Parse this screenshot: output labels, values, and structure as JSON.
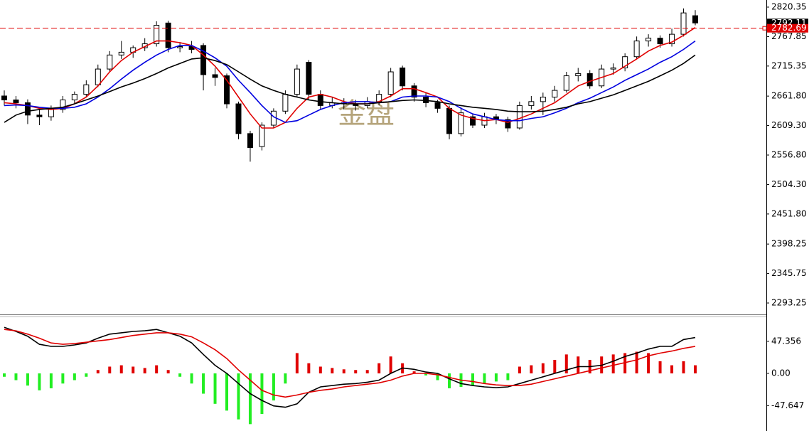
{
  "chart_data": [
    {
      "type": "candlestick",
      "watermark": "金盘",
      "open": [
        2662,
        2655,
        2650,
        2628,
        2625,
        2638,
        2655,
        2665,
        2682,
        2710,
        2735,
        2740,
        2748,
        2755,
        2792,
        2748,
        2750,
        2752,
        2700,
        2698,
        2648,
        2595,
        2572,
        2610,
        2635,
        2665,
        2722,
        2665,
        2645,
        2650,
        2648,
        2645,
        2652,
        2665,
        2712,
        2680,
        2660,
        2650,
        2640,
        2595,
        2625,
        2610,
        2625,
        2620,
        2605,
        2645,
        2652,
        2660,
        2672,
        2698,
        2702,
        2680,
        2710,
        2712,
        2732,
        2760,
        2765,
        2755,
        2772,
        2805
      ],
      "high": [
        2672,
        2662,
        2656,
        2640,
        2645,
        2662,
        2670,
        2690,
        2718,
        2742,
        2760,
        2752,
        2765,
        2795,
        2796,
        2758,
        2760,
        2756,
        2712,
        2702,
        2652,
        2600,
        2615,
        2640,
        2672,
        2718,
        2726,
        2672,
        2660,
        2658,
        2655,
        2660,
        2672,
        2712,
        2716,
        2685,
        2668,
        2655,
        2645,
        2642,
        2630,
        2632,
        2630,
        2625,
        2652,
        2662,
        2668,
        2680,
        2705,
        2712,
        2708,
        2718,
        2720,
        2738,
        2768,
        2772,
        2770,
        2782,
        2818,
        2815
      ],
      "low": [
        2645,
        2640,
        2612,
        2610,
        2618,
        2632,
        2648,
        2660,
        2678,
        2705,
        2728,
        2730,
        2742,
        2750,
        2740,
        2740,
        2738,
        2672,
        2680,
        2640,
        2585,
        2545,
        2565,
        2605,
        2630,
        2660,
        2655,
        2638,
        2640,
        2638,
        2636,
        2640,
        2646,
        2660,
        2672,
        2652,
        2642,
        2632,
        2585,
        2590,
        2605,
        2605,
        2612,
        2598,
        2602,
        2638,
        2628,
        2652,
        2668,
        2688,
        2675,
        2676,
        2700,
        2706,
        2728,
        2750,
        2748,
        2750,
        2768,
        2788
      ],
      "close": [
        2655,
        2650,
        2628,
        2625,
        2638,
        2655,
        2665,
        2682,
        2710,
        2735,
        2740,
        2748,
        2755,
        2788,
        2748,
        2750,
        2745,
        2700,
        2695,
        2648,
        2595,
        2570,
        2610,
        2635,
        2665,
        2710,
        2665,
        2645,
        2650,
        2648,
        2645,
        2652,
        2665,
        2705,
        2680,
        2660,
        2650,
        2640,
        2595,
        2632,
        2610,
        2625,
        2620,
        2605,
        2645,
        2652,
        2660,
        2672,
        2698,
        2702,
        2680,
        2710,
        2712,
        2732,
        2760,
        2765,
        2755,
        2772,
        2810,
        2792.11
      ],
      "up_color": "#ffffff",
      "down_color": "#000000",
      "wick_color": "#000000",
      "series": [
        {
          "color": "#e00000",
          "values": [
            2650,
            2648,
            2645,
            2640,
            2638,
            2640,
            2648,
            2660,
            2680,
            2705,
            2725,
            2740,
            2750,
            2760,
            2760,
            2757,
            2752,
            2735,
            2715,
            2690,
            2660,
            2630,
            2605,
            2605,
            2615,
            2640,
            2660,
            2665,
            2660,
            2652,
            2648,
            2648,
            2652,
            2662,
            2675,
            2675,
            2668,
            2660,
            2640,
            2628,
            2622,
            2618,
            2620,
            2615,
            2622,
            2630,
            2640,
            2650,
            2665,
            2680,
            2688,
            2695,
            2702,
            2715,
            2728,
            2742,
            2752,
            2758,
            2770,
            2784
          ]
        },
        {
          "color": "#0000e0",
          "values": [
            2645,
            2646,
            2645,
            2642,
            2640,
            2640,
            2642,
            2648,
            2660,
            2675,
            2692,
            2708,
            2722,
            2735,
            2745,
            2752,
            2752,
            2742,
            2730,
            2715,
            2690,
            2668,
            2645,
            2625,
            2615,
            2618,
            2628,
            2638,
            2645,
            2650,
            2652,
            2652,
            2650,
            2652,
            2660,
            2662,
            2662,
            2660,
            2652,
            2640,
            2630,
            2625,
            2620,
            2618,
            2618,
            2622,
            2625,
            2632,
            2640,
            2650,
            2658,
            2668,
            2678,
            2690,
            2700,
            2710,
            2722,
            2732,
            2745,
            2760
          ]
        },
        {
          "color": "#000000",
          "values": [
            2615,
            2628,
            2635,
            2638,
            2640,
            2642,
            2648,
            2655,
            2662,
            2670,
            2678,
            2685,
            2693,
            2702,
            2712,
            2720,
            2728,
            2730,
            2725,
            2718,
            2705,
            2692,
            2680,
            2672,
            2665,
            2660,
            2655,
            2652,
            2650,
            2648,
            2648,
            2648,
            2650,
            2652,
            2654,
            2655,
            2654,
            2652,
            2648,
            2645,
            2642,
            2640,
            2638,
            2635,
            2634,
            2634,
            2635,
            2638,
            2642,
            2648,
            2652,
            2658,
            2664,
            2672,
            2680,
            2688,
            2698,
            2708,
            2720,
            2735
          ]
        }
      ],
      "ylim": [
        2273,
        2833
      ],
      "yticks": [
        2820.35,
        2767.85,
        2715.35,
        {
          "value": 2661.8,
          "label": "2661.80"
        },
        {
          "value": 2609.3,
          "label": "2609.30"
        },
        {
          "value": 2556.8,
          "label": "2556.80"
        },
        {
          "value": 2504.3,
          "label": "2504.30"
        },
        {
          "value": 2451.8,
          "label": "2451.80"
        },
        2398.25,
        2345.75,
        2293.25
      ],
      "price_markers": [
        {
          "value": 2792.11,
          "color": "#000000",
          "dashed": false
        },
        {
          "value": 2782.69,
          "color": "#e00000",
          "dashed": true
        }
      ]
    },
    {
      "type": "macd",
      "histogram": {
        "up_color": "#e00000",
        "down_color": "#22ee22",
        "values": [
          -5,
          -10,
          -18,
          -25,
          -22,
          -15,
          -10,
          -5,
          5,
          10,
          12,
          10,
          8,
          12,
          5,
          -5,
          -15,
          -30,
          -45,
          -55,
          -68,
          -75,
          -60,
          -40,
          -15,
          30,
          15,
          10,
          8,
          6,
          5,
          5,
          15,
          25,
          15,
          3,
          -3,
          -10,
          -22,
          -20,
          -18,
          -15,
          -12,
          -10,
          10,
          12,
          15,
          20,
          28,
          25,
          20,
          25,
          28,
          30,
          32,
          30,
          18,
          12,
          18,
          12
        ]
      },
      "lines": [
        {
          "color": "#000000",
          "values": [
            68,
            62,
            55,
            43,
            40,
            40,
            42,
            45,
            52,
            58,
            60,
            62,
            63,
            65,
            60,
            55,
            45,
            28,
            12,
            0,
            -15,
            -30,
            -40,
            -48,
            -50,
            -45,
            -28,
            -20,
            -18,
            -16,
            -15,
            -13,
            -10,
            0,
            8,
            6,
            2,
            0,
            -8,
            -15,
            -18,
            -20,
            -21,
            -20,
            -15,
            -10,
            -5,
            0,
            5,
            10,
            10,
            12,
            18,
            25,
            30,
            36,
            40,
            40,
            50,
            53
          ]
        },
        {
          "color": "#e00000",
          "values": [
            65,
            63,
            58,
            52,
            45,
            43,
            44,
            46,
            48,
            50,
            53,
            56,
            58,
            60,
            60,
            58,
            54,
            45,
            35,
            22,
            5,
            -10,
            -25,
            -32,
            -35,
            -32,
            -28,
            -25,
            -23,
            -20,
            -18,
            -16,
            -14,
            -10,
            -4,
            0,
            0,
            -2,
            -6,
            -10,
            -12,
            -15,
            -17,
            -18,
            -18,
            -16,
            -12,
            -8,
            -4,
            0,
            4,
            8,
            12,
            16,
            20,
            26,
            30,
            33,
            37,
            40
          ]
        }
      ],
      "ylim": [
        -82,
        82
      ],
      "yticks": [
        47.356,
        {
          "value": 0,
          "label": "0.00"
        },
        -47.647
      ]
    }
  ]
}
